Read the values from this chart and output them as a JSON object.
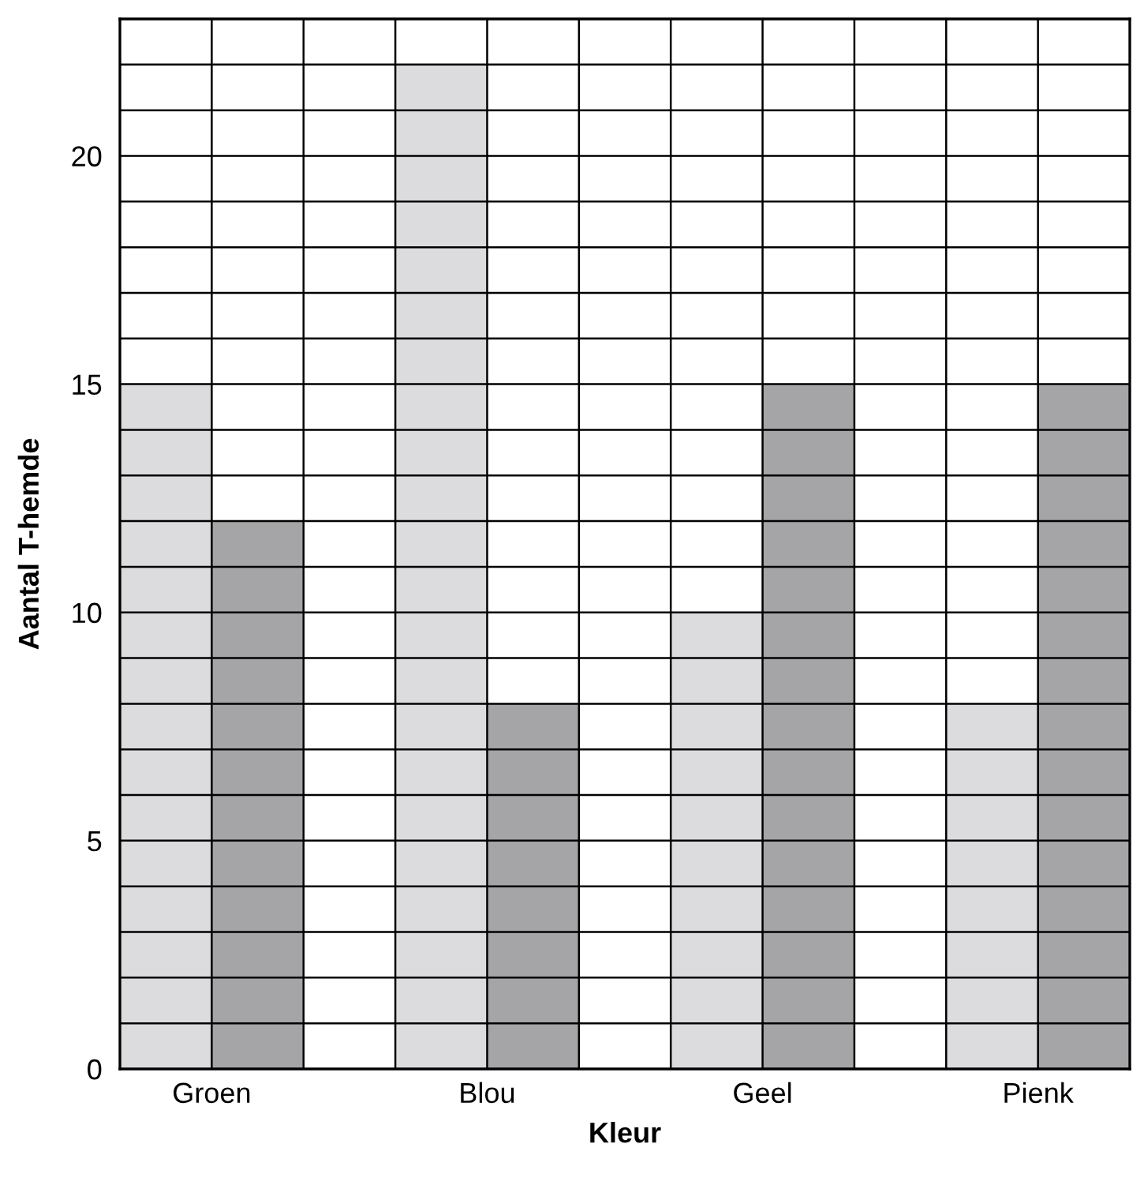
{
  "chart_data": {
    "type": "bar",
    "xlabel": "Kleur",
    "ylabel": "Aantal T-hemde",
    "categories": [
      "Groen",
      "Blou",
      "Geel",
      "Pienk"
    ],
    "series": [
      {
        "color": "#dcdcde",
        "values": [
          15,
          22,
          10,
          8
        ]
      },
      {
        "color": "#a5a5a8",
        "values": [
          12,
          8,
          15,
          15
        ]
      }
    ],
    "ylim": [
      0,
      23
    ],
    "yticks": [
      0,
      5,
      10,
      15,
      20
    ],
    "grid": true
  }
}
